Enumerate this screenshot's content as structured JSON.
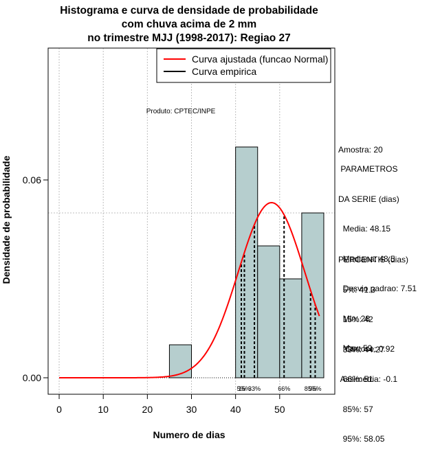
{
  "chart_data": {
    "type": "histogram",
    "title_lines": [
      "Histograma e curva de densidade de probabilidade",
      "com chuva acima de 2 mm",
      "no trimestre MJJ (1998-2017): Regiao 27"
    ],
    "xlabel": "Numero de dias",
    "ylabel": "Densidade de probabilidade",
    "xlim": [
      -2.5,
      62.5
    ],
    "ylim": [
      -0.005,
      0.1
    ],
    "x_ticks": [
      0,
      10,
      20,
      30,
      40,
      50
    ],
    "y_ticks": [
      {
        "value": 0.0,
        "label": "0.00"
      },
      {
        "value": 0.06,
        "label": "0.06"
      }
    ],
    "grid_x": [
      0,
      10,
      20,
      30,
      40,
      50
    ],
    "grid_y": [
      0.05,
      0.1
    ],
    "bins": [
      {
        "x0": 25,
        "x1": 30,
        "density": 0.01
      },
      {
        "x0": 40,
        "x1": 45,
        "density": 0.07
      },
      {
        "x0": 45,
        "x1": 50,
        "density": 0.04
      },
      {
        "x0": 50,
        "x1": 55,
        "density": 0.03
      },
      {
        "x0": 55,
        "x1": 60,
        "density": 0.05
      }
    ],
    "bar_color": "#b6cece",
    "normal_curve": {
      "label": "Curva ajustada (funcao Normal)",
      "mean": 48.15,
      "sd": 7.51,
      "x_from": 0,
      "x_to": 59,
      "color": "#ff0000"
    },
    "empirical_curve": {
      "label": "Curva empirica",
      "color": "#000000"
    },
    "percentile_lines": [
      {
        "x": 41.3,
        "label": "5%"
      },
      {
        "x": 42,
        "label": "15%"
      },
      {
        "x": 44.27,
        "label": "33%"
      },
      {
        "x": 51,
        "label": "66%"
      },
      {
        "x": 57,
        "label": "85%"
      },
      {
        "x": 58.05,
        "label": "95%"
      }
    ],
    "annotation": "Produto: CPTEC/INPE"
  },
  "side_panel": {
    "amostra": "Amostra: 20",
    "param_title_1": " PARAMETROS",
    "param_title_2": "DA SERIE (dias)",
    "media": "  Media: 48.15",
    "mediana": "  Mediana: 48.5",
    "desvio": "  Desvio padrao: 7.51",
    "min": "  Min: 28",
    "max": "  Max: 59",
    "perc_title": "PERCENTIS (dias)",
    "p5": "  5%: 41.3",
    "p15": "  15%: 42",
    "p33": "  33%: 44.27",
    "p66": "  66%: 51",
    "p85": "  85%: 57",
    "p95": "  95%: 58.05",
    "curtose": "   Curtose: 0.92",
    "assimetria": " Assimetria: -0.1"
  }
}
